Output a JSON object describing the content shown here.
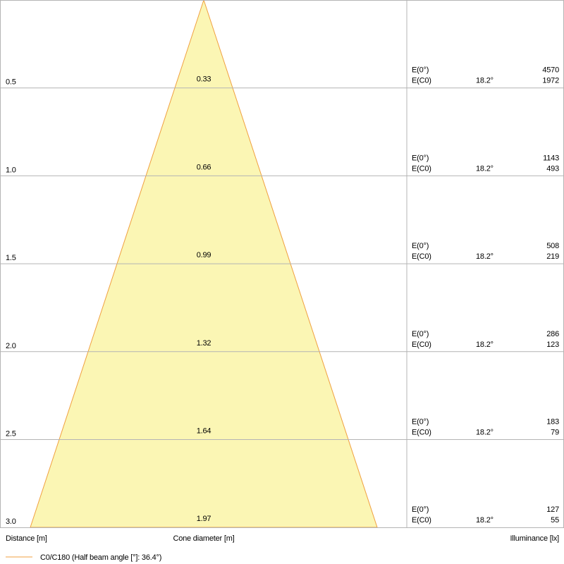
{
  "rows": [
    {
      "distance": "0.5",
      "diameter": "0.33",
      "e0_label": "E(0°)",
      "ec0_label": "E(C0)",
      "angle": "18.2°",
      "e0": "4570",
      "ec0": "1972"
    },
    {
      "distance": "1.0",
      "diameter": "0.66",
      "e0_label": "E(0°)",
      "ec0_label": "E(C0)",
      "angle": "18.2°",
      "e0": "1143",
      "ec0": "493"
    },
    {
      "distance": "1.5",
      "diameter": "0.99",
      "e0_label": "E(0°)",
      "ec0_label": "E(C0)",
      "angle": "18.2°",
      "e0": "508",
      "ec0": "219"
    },
    {
      "distance": "2.0",
      "diameter": "1.32",
      "e0_label": "E(0°)",
      "ec0_label": "E(C0)",
      "angle": "18.2°",
      "e0": "286",
      "ec0": "123"
    },
    {
      "distance": "2.5",
      "diameter": "1.64",
      "e0_label": "E(0°)",
      "ec0_label": "E(C0)",
      "angle": "18.2°",
      "e0": "183",
      "ec0": "79"
    },
    {
      "distance": "3.0",
      "diameter": "1.97",
      "e0_label": "E(0°)",
      "ec0_label": "E(C0)",
      "angle": "18.2°",
      "e0": "127",
      "ec0": "55"
    }
  ],
  "footer": {
    "distance": "Distance [m]",
    "diameter": "Cone diameter [m]",
    "illuminance": "Illuminance [lx]"
  },
  "legend": "C0/C180 (Half beam angle [°]: 36.4°)"
}
